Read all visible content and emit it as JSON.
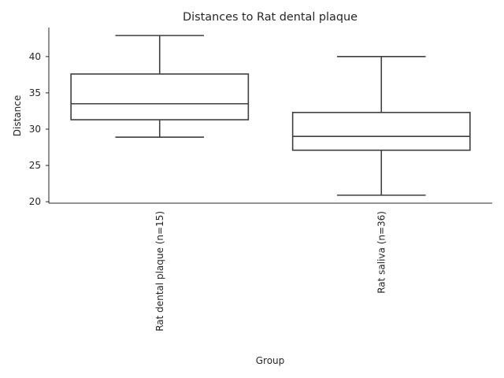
{
  "chart_data": {
    "type": "box",
    "title": "Distances to Rat dental plaque",
    "xlabel": "Group",
    "ylabel": "Distance",
    "ylim": [
      19.8,
      44
    ],
    "yticks": [
      20,
      25,
      30,
      35,
      40
    ],
    "grid": false,
    "categories": [
      "Rat dental plaque (n=15)",
      "Rat saliva (n=36)"
    ],
    "boxes": [
      {
        "category": "Rat dental plaque (n=15)",
        "whisker_low": 28.9,
        "q1": 31.3,
        "median": 33.5,
        "q3": 37.6,
        "whisker_high": 42.9
      },
      {
        "category": "Rat saliva (n=36)",
        "whisker_low": 20.9,
        "q1": 27.1,
        "median": 29.0,
        "q3": 32.3,
        "whisker_high": 40.0
      }
    ]
  }
}
